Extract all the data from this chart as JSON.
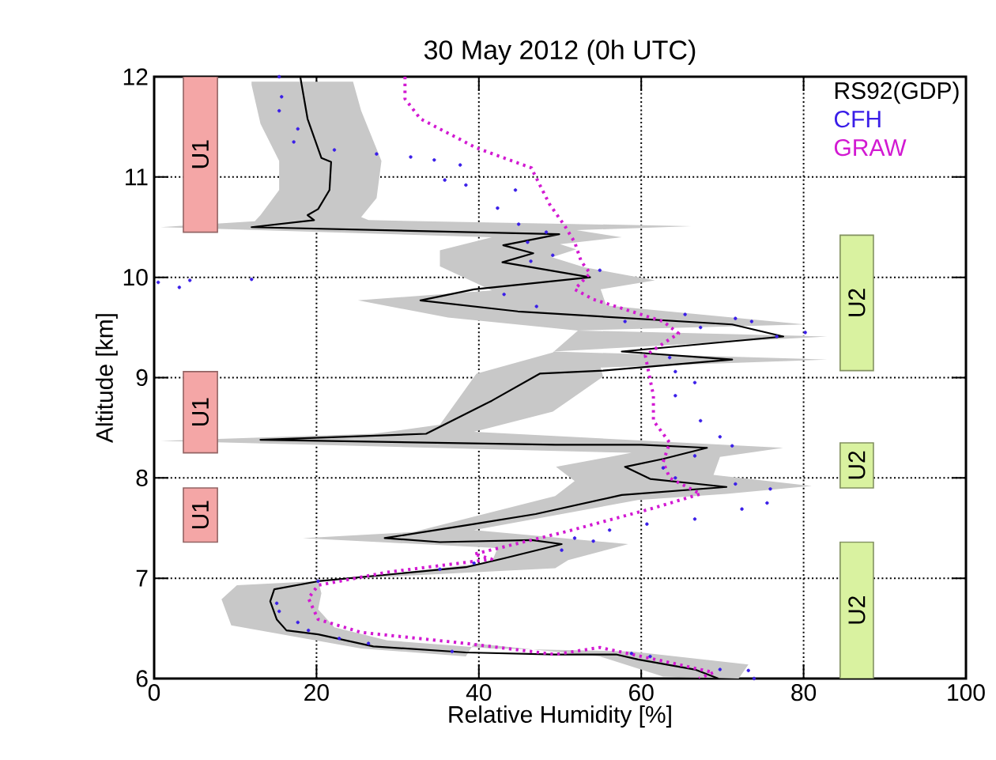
{
  "chart_data": {
    "type": "line",
    "title": "30 May 2012 (0h UTC)",
    "xlabel": "Relative Humidity [%]",
    "ylabel": "Altitude [km]",
    "xlim": [
      0,
      100
    ],
    "ylim": [
      6,
      12
    ],
    "xticks": [
      0,
      20,
      40,
      60,
      80,
      100
    ],
    "yticks": [
      6,
      7,
      8,
      9,
      10,
      11,
      12
    ],
    "grid": true,
    "legend": "top right",
    "series": [
      {
        "type": "area",
        "color": "#c8c8c8",
        "x": [
          12.0,
          24.5,
          25.5,
          28.0,
          27.4,
          25.5,
          26.4,
          66.2,
          52,
          57.6,
          50,
          52,
          49,
          53,
          61.7,
          55,
          55.7,
          80.2,
          52.2,
          82.9,
          49.1,
          82.9,
          55,
          55.3,
          49.1,
          39.4,
          77.5,
          69.7,
          68.9,
          81.0,
          70.5,
          59.6,
          39.4,
          58.4,
          51.0,
          49.4,
          20.2,
          20.6,
          20.2,
          22.2,
          28.7,
          41.6,
          58.8,
          73.2,
          72,
          62.7,
          54.9,
          39.4,
          38.4,
          25.5,
          9.5,
          8.3,
          10.2,
          22.2,
          41.6,
          42.3,
          18.3,
          31.9,
          49.4,
          51.8,
          49.5,
          58.8,
          0.8,
          27.0,
          35.2,
          39.7,
          49.1,
          52.2,
          36.2,
          25.1,
          41.6,
          35.2,
          35.2,
          41.6,
          0.8,
          12.4,
          13.1,
          15.4,
          15.4,
          13.1,
          12.0
        ],
        "values": [
          11.95,
          11.95,
          11.66,
          11.16,
          10.79,
          10.6,
          10.57,
          10.51,
          10.47,
          10.4,
          10.33,
          10.28,
          10.2,
          10.1,
          9.97,
          9.88,
          9.72,
          9.53,
          9.47,
          9.41,
          9.26,
          9.18,
          9.1,
          9.01,
          8.66,
          8.46,
          8.3,
          8.21,
          8.03,
          7.92,
          7.84,
          7.78,
          7.48,
          7.34,
          7.18,
          7.1,
          6.98,
          6.85,
          6.69,
          6.51,
          6.38,
          6.3,
          6.27,
          6.14,
          6.0,
          6.02,
          6.22,
          6.35,
          6.22,
          6.3,
          6.53,
          6.79,
          6.93,
          6.98,
          7.16,
          7.3,
          7.4,
          7.46,
          7.82,
          7.97,
          8.11,
          8.25,
          8.37,
          8.44,
          8.53,
          9.04,
          9.25,
          9.47,
          9.6,
          9.77,
          9.87,
          10.11,
          10.27,
          10.4,
          10.5,
          10.56,
          10.62,
          10.87,
          11.16,
          11.53,
          11.92
        ]
      },
      {
        "name": "RS92(GDP)",
        "color": "#000000",
        "marker": "none",
        "x": [
          18.0,
          18.9,
          20.6,
          21.8,
          21.6,
          20.2,
          18.9,
          19.7,
          12,
          49.9,
          43.0,
          46.7,
          42.9,
          53.7,
          39.4,
          32.8,
          44.8,
          71.2,
          77.5,
          57.6,
          71.2,
          55.3,
          47.5,
          41.6,
          33.5,
          13.1,
          34.8,
          49.4,
          60,
          68.1,
          62.7,
          58.0,
          61.1,
          70.5,
          57.6,
          47,
          39.4,
          28.4,
          35.2,
          46.5,
          50.2,
          43.2,
          38.4,
          20.2,
          14.8,
          14.3,
          15.1,
          16.3,
          20.2,
          27.0,
          38.4,
          49.4,
          56.9,
          59.6,
          66.6,
          69.5
        ],
        "values": [
          12.0,
          11.58,
          11.19,
          11.15,
          10.87,
          10.68,
          10.62,
          10.57,
          10.5,
          10.43,
          10.32,
          10.24,
          10.15,
          10.0,
          9.88,
          9.77,
          9.66,
          9.53,
          9.41,
          9.26,
          9.18,
          9.07,
          9.04,
          8.77,
          8.44,
          8.38,
          8.35,
          8.33,
          8.33,
          8.3,
          8.19,
          8.11,
          7.99,
          7.91,
          7.83,
          7.64,
          7.54,
          7.4,
          7.36,
          7.38,
          7.34,
          7.2,
          7.11,
          6.97,
          6.89,
          6.77,
          6.59,
          6.48,
          6.44,
          6.32,
          6.26,
          6.24,
          6.24,
          6.19,
          6.09,
          6.0
        ]
      },
      {
        "name": "CFH",
        "type": "scatter",
        "color": "#3a1ee8",
        "marker": "circle",
        "x": [
          15.4,
          15.7,
          15.4,
          17.7,
          17.2,
          22.2,
          27.4,
          31.6,
          34.5,
          37.7,
          35.8,
          38.4,
          44.5,
          42.3,
          44.9,
          48.3,
          46.0,
          49.1,
          46.4,
          54.9,
          0.5,
          3.1,
          4.4,
          12.0,
          43.1,
          47.1,
          58.0,
          65.4,
          71.6,
          73.6,
          67.3,
          80.2,
          76.7,
          63.5,
          64.2,
          64.2,
          66.6,
          67.3,
          69.7,
          71.2,
          66.6,
          62.7,
          64.2,
          71.6,
          75.9,
          75.5,
          72.4,
          66.6,
          60.7,
          56.1,
          51.8,
          54.1,
          50.2,
          39.4,
          35.2,
          20.2,
          15.1,
          15.4,
          17.7,
          19.0,
          22.8,
          26.4,
          36.7,
          58.8,
          61.1,
          69.7,
          73.2,
          73.9
        ],
        "values": [
          12.0,
          11.8,
          11.66,
          11.48,
          11.35,
          11.27,
          11.23,
          11.2,
          11.17,
          11.12,
          10.97,
          10.92,
          10.87,
          10.69,
          10.53,
          10.45,
          10.35,
          10.22,
          10.16,
          10.07,
          9.95,
          9.9,
          9.97,
          9.98,
          9.83,
          9.71,
          9.56,
          9.63,
          9.59,
          9.56,
          9.5,
          9.45,
          9.41,
          9.2,
          9.06,
          8.82,
          8.95,
          8.57,
          8.41,
          8.32,
          8.22,
          8.1,
          8.0,
          7.94,
          7.89,
          7.75,
          7.69,
          7.59,
          7.54,
          7.48,
          7.4,
          7.37,
          7.28,
          7.15,
          7.09,
          6.97,
          6.75,
          6.67,
          6.56,
          6.48,
          6.4,
          6.35,
          6.27,
          6.25,
          6.22,
          6.09,
          6.08,
          6.0
        ]
      },
      {
        "name": "GRAW",
        "color": "#d21ad2",
        "marker": "none",
        "line_style": "dotted",
        "x": [
          30.9,
          30.9,
          32.8,
          39.7,
          46.5,
          46.7,
          48.7,
          50.6,
          51.8,
          52.6,
          53.7,
          51.8,
          54.1,
          58.8,
          62.7,
          64.6,
          62.7,
          60.5,
          61.5,
          61.5,
          62.7,
          63.5,
          62.7,
          63.5,
          67.3,
          61.1,
          51.0,
          39.4,
          41.6,
          28.7,
          20.2,
          19.0,
          20.2,
          25.5,
          38.4,
          49.4,
          54.9,
          64.6,
          68.9,
          67.1
        ],
        "values": [
          12.0,
          11.78,
          11.58,
          11.29,
          11.09,
          11.05,
          10.73,
          10.51,
          10.35,
          10.16,
          10.04,
          9.88,
          9.78,
          9.66,
          9.56,
          9.44,
          9.34,
          9.22,
          8.82,
          8.57,
          8.44,
          8.35,
          8.16,
          8.0,
          7.84,
          7.69,
          7.47,
          7.24,
          7.19,
          7.06,
          6.93,
          6.8,
          6.59,
          6.46,
          6.35,
          6.24,
          6.31,
          6.14,
          6.06,
          6.0
        ]
      }
    ],
    "bands": [
      {
        "axis": "y",
        "from": 10.45,
        "to": 12,
        "label": "U1",
        "color": "#f4a6a6"
      },
      {
        "axis": "y",
        "from": 8.25,
        "to": 9.06,
        "label": "U1",
        "color": "#f4a6a6"
      },
      {
        "axis": "y",
        "from": 7.36,
        "to": 7.9,
        "label": "U1",
        "color": "#f4a6a6"
      },
      {
        "axis": "y",
        "from": 9.07,
        "to": 10.42,
        "label": "U2",
        "color": "#d9f2a0"
      },
      {
        "axis": "y",
        "from": 7.9,
        "to": 8.35,
        "label": "U2",
        "color": "#d9f2a0"
      },
      {
        "axis": "y",
        "from": 6.0,
        "to": 7.36,
        "label": "U2",
        "color": "#d9f2a0"
      }
    ]
  }
}
